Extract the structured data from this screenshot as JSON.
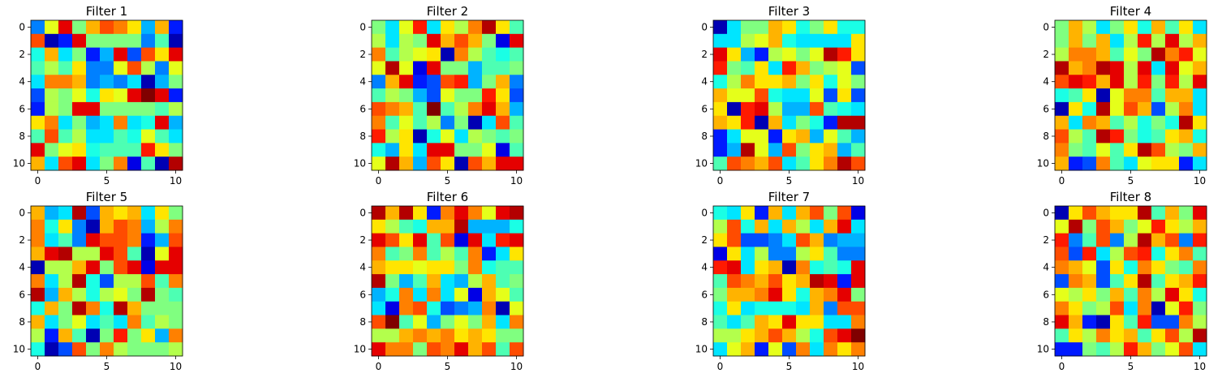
{
  "chart_data": [
    {
      "type": "heatmap",
      "title": "Filter 1",
      "colormap": "jet",
      "xlim": [
        -0.5,
        10.5
      ],
      "ylim": [
        10.5,
        -0.5
      ],
      "xticks": [
        "0",
        "5",
        "10"
      ],
      "yticks": [
        "0",
        "2",
        "4",
        "6",
        "8",
        "10"
      ],
      "values": [
        [
          0.25,
          0.6,
          0.9,
          0.5,
          0.7,
          0.8,
          0.75,
          0.65,
          0.3,
          0.7,
          0.15
        ],
        [
          0.8,
          0.05,
          0.15,
          0.9,
          0.5,
          0.5,
          0.5,
          0.5,
          0.25,
          0.45,
          0.05
        ],
        [
          0.4,
          0.7,
          0.35,
          0.5,
          0.15,
          0.3,
          0.9,
          0.2,
          0.8,
          0.65,
          0.9
        ],
        [
          0.45,
          0.55,
          0.45,
          0.65,
          0.25,
          0.25,
          0.6,
          0.8,
          0.55,
          0.25,
          0.6
        ],
        [
          0.35,
          0.75,
          0.75,
          0.7,
          0.25,
          0.3,
          0.25,
          0.35,
          0.05,
          0.3,
          0.5
        ],
        [
          0.2,
          0.55,
          0.5,
          0.6,
          0.4,
          0.65,
          0.6,
          0.9,
          1.0,
          0.9,
          0.15
        ],
        [
          0.15,
          0.55,
          0.5,
          0.9,
          0.9,
          0.5,
          0.5,
          0.5,
          0.5,
          0.45,
          0.55
        ],
        [
          0.65,
          0.75,
          0.35,
          0.5,
          0.3,
          0.35,
          0.75,
          0.35,
          0.4,
          0.9,
          0.3
        ],
        [
          0.45,
          0.8,
          0.45,
          0.55,
          0.35,
          0.35,
          0.45,
          0.4,
          0.6,
          0.45,
          0.35
        ],
        [
          0.9,
          0.5,
          0.6,
          0.65,
          0.4,
          0.45,
          0.45,
          0.45,
          0.85,
          0.65,
          0.5
        ],
        [
          0.7,
          0.35,
          0.8,
          0.9,
          0.35,
          0.5,
          0.75,
          0.1,
          0.45,
          0.05,
          0.95
        ]
      ]
    },
    {
      "type": "heatmap",
      "title": "Filter 2",
      "colormap": "jet",
      "xlim": [
        -0.5,
        10.5
      ],
      "ylim": [
        10.5,
        -0.5
      ],
      "xticks": [
        "0",
        "5",
        "10"
      ],
      "yticks": [
        "0",
        "2",
        "4",
        "6",
        "8",
        "10"
      ],
      "values": [
        [
          0.5,
          0.35,
          0.6,
          0.85,
          0.35,
          0.65,
          0.55,
          0.75,
          0.95,
          0.65,
          0.45
        ],
        [
          0.55,
          0.35,
          0.55,
          0.5,
          0.9,
          0.7,
          0.8,
          0.7,
          0.5,
          0.1,
          0.9
        ],
        [
          0.75,
          0.45,
          0.55,
          0.6,
          0.65,
          0.05,
          0.75,
          0.55,
          0.45,
          0.4,
          0.45
        ],
        [
          0.6,
          0.95,
          0.6,
          0.1,
          0.9,
          0.5,
          0.5,
          0.3,
          0.45,
          0.45,
          0.5
        ],
        [
          0.25,
          0.7,
          0.9,
          0.15,
          0.2,
          0.8,
          0.85,
          0.3,
          0.5,
          0.7,
          0.25
        ],
        [
          0.45,
          0.55,
          0.5,
          0.3,
          0.2,
          0.6,
          0.5,
          0.5,
          0.85,
          0.65,
          0.2
        ],
        [
          0.8,
          0.75,
          0.7,
          0.45,
          1.0,
          0.45,
          0.55,
          0.75,
          0.9,
          0.7,
          0.3
        ],
        [
          0.75,
          0.45,
          0.6,
          0.45,
          0.55,
          0.25,
          0.5,
          0.05,
          0.35,
          0.8,
          0.45
        ],
        [
          0.85,
          0.55,
          0.65,
          0.05,
          0.4,
          0.6,
          0.35,
          0.55,
          0.5,
          0.45,
          0.5
        ],
        [
          0.4,
          0.3,
          0.65,
          0.35,
          0.9,
          0.9,
          0.5,
          0.5,
          0.6,
          0.1,
          0.45
        ],
        [
          0.6,
          0.95,
          0.7,
          0.3,
          0.8,
          0.65,
          0.05,
          0.8,
          0.7,
          0.9,
          0.9
        ]
      ]
    },
    {
      "type": "heatmap",
      "title": "Filter 3",
      "colormap": "jet",
      "xlim": [
        -0.5,
        10.5
      ],
      "ylim": [
        10.5,
        -0.5
      ],
      "xticks": [
        "0",
        "5",
        "10"
      ],
      "yticks": [
        "0",
        "2",
        "4",
        "6",
        "8",
        "10"
      ],
      "values": [
        [
          0.05,
          0.35,
          0.5,
          0.5,
          0.7,
          0.65,
          0.4,
          0.5,
          0.65,
          0.4,
          0.4
        ],
        [
          0.35,
          0.35,
          0.55,
          0.6,
          0.7,
          0.4,
          0.35,
          0.35,
          0.35,
          0.35,
          0.65
        ],
        [
          0.9,
          0.65,
          0.3,
          0.15,
          0.55,
          0.6,
          0.5,
          0.6,
          0.95,
          0.85,
          0.65
        ],
        [
          0.85,
          0.5,
          0.45,
          0.65,
          0.35,
          0.85,
          0.7,
          0.5,
          0.55,
          0.6,
          0.2
        ],
        [
          0.4,
          0.55,
          0.75,
          0.65,
          0.65,
          0.7,
          0.5,
          0.65,
          0.4,
          0.6,
          0.5
        ],
        [
          0.7,
          0.6,
          0.6,
          0.8,
          0.4,
          0.35,
          0.35,
          0.6,
          0.2,
          0.65,
          0.2
        ],
        [
          0.65,
          0.05,
          0.85,
          0.9,
          0.55,
          0.3,
          0.3,
          0.8,
          0.45,
          0.4,
          0.35
        ],
        [
          0.7,
          0.65,
          0.85,
          0.05,
          0.7,
          0.35,
          0.5,
          0.4,
          0.15,
          0.95,
          0.95
        ],
        [
          0.15,
          0.35,
          0.6,
          0.6,
          0.15,
          0.65,
          0.7,
          0.3,
          0.6,
          0.45,
          0.3
        ],
        [
          0.15,
          0.3,
          0.95,
          0.6,
          0.3,
          0.8,
          0.5,
          0.65,
          0.7,
          0.3,
          0.45
        ],
        [
          0.45,
          0.8,
          0.75,
          0.7,
          0.8,
          0.35,
          0.45,
          0.65,
          0.75,
          0.95,
          0.8
        ]
      ]
    },
    {
      "type": "heatmap",
      "title": "Filter 4",
      "colormap": "jet",
      "xlim": [
        -0.5,
        10.5
      ],
      "ylim": [
        10.5,
        -0.5
      ],
      "xticks": [
        "0",
        "5",
        "10"
      ],
      "yticks": [
        "0",
        "2",
        "4",
        "6",
        "8",
        "10"
      ],
      "values": [
        [
          0.5,
          0.7,
          0.55,
          0.35,
          0.5,
          0.65,
          0.4,
          0.7,
          0.45,
          0.65,
          0.35
        ],
        [
          0.5,
          0.7,
          0.5,
          0.7,
          0.35,
          0.55,
          0.85,
          0.55,
          0.9,
          0.55,
          0.7
        ],
        [
          0.55,
          0.75,
          0.75,
          0.7,
          0.45,
          0.6,
          0.5,
          0.95,
          0.75,
          0.85,
          0.6
        ],
        [
          0.95,
          0.7,
          0.75,
          0.95,
          0.9,
          0.55,
          0.9,
          0.35,
          0.9,
          0.6,
          0.7
        ],
        [
          0.8,
          0.9,
          0.85,
          0.7,
          0.9,
          0.55,
          0.85,
          0.5,
          0.85,
          0.55,
          0.9
        ],
        [
          0.4,
          0.45,
          0.65,
          0.05,
          0.6,
          0.75,
          0.75,
          0.45,
          0.7,
          0.7,
          0.35
        ],
        [
          0.05,
          0.65,
          0.4,
          0.95,
          0.6,
          0.8,
          0.7,
          0.2,
          0.55,
          0.75,
          0.35
        ],
        [
          0.7,
          0.35,
          0.75,
          0.7,
          0.45,
          0.55,
          0.4,
          0.5,
          0.4,
          0.95,
          0.65
        ],
        [
          0.8,
          0.55,
          0.45,
          0.95,
          0.85,
          0.5,
          0.4,
          0.45,
          0.65,
          0.7,
          0.4
        ],
        [
          0.75,
          0.5,
          0.45,
          0.6,
          0.45,
          0.65,
          0.95,
          0.8,
          0.55,
          0.5,
          0.7
        ],
        [
          0.7,
          0.15,
          0.2,
          0.75,
          0.45,
          0.35,
          0.6,
          0.65,
          0.65,
          0.15,
          0.35
        ]
      ]
    },
    {
      "type": "heatmap",
      "title": "Filter 5",
      "colormap": "jet",
      "xlim": [
        -0.5,
        10.5
      ],
      "ylim": [
        10.5,
        -0.5
      ],
      "xticks": [
        "0",
        "5",
        "10"
      ],
      "yticks": [
        "0",
        "2",
        "4",
        "6",
        "8",
        "10"
      ],
      "values": [
        [
          0.7,
          0.3,
          0.35,
          0.95,
          0.2,
          0.7,
          0.65,
          0.7,
          0.35,
          0.65,
          0.5
        ],
        [
          0.75,
          0.4,
          0.65,
          0.25,
          0.05,
          0.7,
          0.8,
          0.75,
          0.3,
          0.55,
          0.75
        ],
        [
          0.75,
          0.35,
          0.45,
          0.25,
          0.9,
          0.8,
          0.8,
          0.75,
          0.15,
          0.3,
          0.8
        ],
        [
          0.7,
          0.9,
          0.95,
          0.55,
          0.55,
          0.9,
          0.8,
          0.45,
          0.05,
          0.6,
          0.9
        ],
        [
          0.05,
          0.55,
          0.55,
          0.7,
          0.9,
          0.5,
          0.8,
          0.9,
          0.1,
          0.9,
          0.9
        ],
        [
          0.75,
          0.35,
          0.55,
          0.95,
          0.4,
          0.2,
          0.55,
          0.55,
          0.8,
          0.45,
          0.75
        ],
        [
          0.95,
          0.3,
          0.7,
          0.55,
          0.4,
          0.55,
          0.6,
          0.5,
          0.95,
          0.5,
          0.45
        ],
        [
          0.4,
          0.7,
          0.5,
          0.95,
          0.75,
          0.4,
          0.95,
          0.7,
          0.5,
          0.5,
          0.5
        ],
        [
          0.7,
          0.35,
          0.5,
          0.6,
          0.35,
          0.45,
          0.35,
          0.75,
          0.45,
          0.55,
          0.5
        ],
        [
          0.55,
          0.15,
          0.7,
          0.45,
          0.05,
          0.5,
          0.85,
          0.5,
          0.65,
          0.3,
          0.75
        ],
        [
          0.4,
          0.05,
          0.2,
          0.8,
          0.5,
          0.75,
          0.55,
          0.5,
          0.5,
          0.5,
          0.55
        ]
      ]
    },
    {
      "type": "heatmap",
      "title": "Filter 6",
      "colormap": "jet",
      "xlim": [
        -0.5,
        10.5
      ],
      "ylim": [
        10.5,
        -0.5
      ],
      "xticks": [
        "0",
        "5",
        "10"
      ],
      "yticks": [
        "0",
        "2",
        "4",
        "6",
        "8",
        "10"
      ],
      "values": [
        [
          0.95,
          0.7,
          0.95,
          0.65,
          0.15,
          0.75,
          0.9,
          0.75,
          0.6,
          0.9,
          0.95
        ],
        [
          0.65,
          0.55,
          0.45,
          0.4,
          0.7,
          0.7,
          0.95,
          0.3,
          0.3,
          0.3,
          0.4
        ],
        [
          0.9,
          0.8,
          0.65,
          0.9,
          0.45,
          0.8,
          0.1,
          0.9,
          0.35,
          0.85,
          0.9
        ],
        [
          0.75,
          0.45,
          0.5,
          0.75,
          0.45,
          0.55,
          0.45,
          0.75,
          0.15,
          0.35,
          0.65
        ],
        [
          0.7,
          0.65,
          0.65,
          0.6,
          0.65,
          0.65,
          0.5,
          0.75,
          0.4,
          0.45,
          0.45
        ],
        [
          0.95,
          0.5,
          0.3,
          0.45,
          0.7,
          0.35,
          0.3,
          0.55,
          0.7,
          0.45,
          0.5
        ],
        [
          0.3,
          0.4,
          0.75,
          0.35,
          0.75,
          0.35,
          0.6,
          0.1,
          0.7,
          0.6,
          0.45
        ],
        [
          0.35,
          0.1,
          0.75,
          0.8,
          0.4,
          0.2,
          0.25,
          0.3,
          0.75,
          0.05,
          0.6
        ],
        [
          0.8,
          1.0,
          0.45,
          0.6,
          0.3,
          0.5,
          0.6,
          0.5,
          0.7,
          0.35,
          0.75
        ],
        [
          0.55,
          0.55,
          0.7,
          0.75,
          0.7,
          0.75,
          0.65,
          0.7,
          0.65,
          0.5,
          0.5
        ],
        [
          0.9,
          0.75,
          0.75,
          0.5,
          0.8,
          0.75,
          0.9,
          0.7,
          0.8,
          0.45,
          0.8
        ]
      ]
    },
    {
      "type": "heatmap",
      "title": "Filter 7",
      "colormap": "jet",
      "xlim": [
        -0.5,
        10.5
      ],
      "ylim": [
        10.5,
        -0.5
      ],
      "xticks": [
        "0",
        "5",
        "10"
      ],
      "yticks": [
        "0",
        "2",
        "4",
        "6",
        "8",
        "10"
      ],
      "values": [
        [
          0.4,
          0.35,
          0.65,
          0.15,
          0.7,
          0.35,
          0.7,
          0.8,
          0.5,
          0.8,
          0.1
        ],
        [
          0.55,
          0.8,
          0.4,
          0.7,
          0.35,
          0.7,
          0.55,
          0.35,
          0.7,
          0.9,
          0.35
        ],
        [
          0.65,
          0.8,
          0.2,
          0.2,
          0.25,
          0.35,
          0.8,
          0.7,
          0.25,
          0.3,
          0.3
        ],
        [
          0.1,
          0.65,
          0.35,
          0.55,
          0.25,
          0.25,
          0.55,
          0.65,
          0.45,
          0.25,
          0.25
        ],
        [
          0.85,
          0.9,
          0.35,
          0.65,
          0.7,
          0.05,
          0.75,
          0.4,
          0.45,
          0.4,
          0.9
        ],
        [
          0.45,
          0.8,
          0.75,
          0.7,
          0.8,
          0.65,
          0.7,
          0.95,
          0.9,
          0.15,
          0.9
        ],
        [
          0.5,
          0.7,
          0.7,
          0.75,
          0.9,
          0.65,
          0.4,
          0.7,
          0.75,
          0.9,
          0.5
        ],
        [
          0.4,
          0.65,
          0.35,
          0.4,
          0.4,
          0.4,
          0.35,
          0.7,
          0.25,
          0.8,
          0.8
        ],
        [
          0.45,
          0.35,
          0.45,
          0.7,
          0.65,
          0.9,
          0.65,
          0.65,
          0.35,
          0.35,
          0.75
        ],
        [
          0.55,
          0.55,
          0.65,
          0.7,
          0.8,
          0.7,
          0.55,
          0.4,
          0.8,
          0.9,
          1.0
        ],
        [
          0.35,
          0.6,
          0.7,
          0.15,
          0.6,
          0.2,
          0.75,
          0.35,
          0.75,
          0.65,
          0.75
        ]
      ]
    },
    {
      "type": "heatmap",
      "title": "Filter 8",
      "colormap": "jet",
      "xlim": [
        -0.5,
        10.5
      ],
      "ylim": [
        10.5,
        -0.5
      ],
      "xticks": [
        "0",
        "5",
        "10"
      ],
      "yticks": [
        "0",
        "2",
        "4",
        "6",
        "8",
        "10"
      ],
      "values": [
        [
          0.05,
          0.65,
          0.8,
          0.7,
          0.65,
          0.65,
          0.95,
          0.45,
          0.7,
          0.5,
          0.9
        ],
        [
          0.6,
          0.95,
          0.5,
          0.8,
          0.7,
          0.5,
          0.6,
          0.85,
          0.65,
          0.55,
          0.7
        ],
        [
          0.85,
          0.25,
          0.45,
          0.8,
          0.25,
          0.55,
          0.95,
          0.7,
          0.8,
          0.25,
          0.85
        ],
        [
          0.8,
          0.2,
          0.85,
          0.35,
          0.55,
          0.8,
          0.85,
          0.4,
          0.65,
          0.75,
          0.45
        ],
        [
          0.75,
          0.7,
          0.6,
          0.2,
          0.65,
          0.4,
          0.75,
          0.65,
          0.5,
          0.45,
          0.75
        ],
        [
          0.2,
          0.75,
          0.7,
          0.2,
          0.45,
          0.65,
          0.95,
          0.45,
          0.65,
          0.7,
          0.85
        ],
        [
          0.6,
          0.55,
          0.65,
          0.5,
          0.7,
          0.45,
          0.75,
          0.55,
          0.9,
          0.65,
          0.4
        ],
        [
          0.75,
          0.65,
          0.5,
          0.55,
          0.8,
          0.35,
          0.75,
          0.05,
          0.6,
          0.85,
          0.5
        ],
        [
          0.9,
          0.7,
          0.15,
          0.05,
          0.65,
          0.45,
          0.85,
          0.2,
          0.2,
          0.75,
          0.55
        ],
        [
          0.45,
          0.65,
          0.55,
          0.75,
          0.65,
          0.7,
          0.45,
          0.65,
          0.8,
          0.55,
          0.95
        ],
        [
          0.15,
          0.15,
          0.5,
          0.45,
          0.55,
          0.85,
          0.7,
          0.5,
          0.6,
          0.8,
          0.35
        ]
      ]
    }
  ]
}
